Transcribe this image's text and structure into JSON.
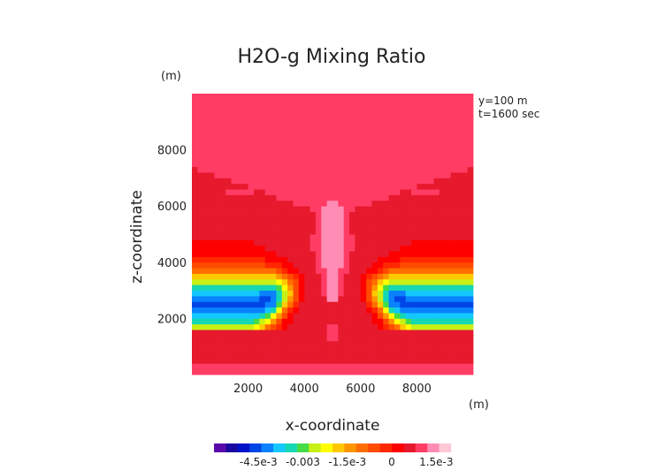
{
  "chart_data": {
    "type": "heatmap",
    "title": "H2O-g Mixing Ratio",
    "xlabel": "x-coordinate",
    "ylabel": "z-coordinate",
    "x_unit": "(m)",
    "z_unit": "(m)",
    "annotations": [
      "y=100 m",
      "t=1600 sec"
    ],
    "xlim": [
      0,
      10000
    ],
    "ylim": [
      0,
      10000
    ],
    "x_ticks": [
      2000,
      4000,
      6000,
      8000
    ],
    "z_ticks": [
      2000,
      4000,
      6000,
      8000
    ],
    "x_tick_labels": [
      "2000",
      "4000",
      "6000",
      "8000"
    ],
    "z_tick_labels": [
      "2000",
      "4000",
      "6000",
      "8000"
    ],
    "colorbar": {
      "range": [
        -0.006,
        0.002
      ],
      "tick_labels": [
        "-4.5e-3",
        "-0.003",
        "-1.5e-3",
        "0",
        "1.5e-3"
      ],
      "tick_values": [
        -0.0045,
        -0.003,
        -0.0015,
        0,
        0.0015
      ]
    },
    "field_features": [
      {
        "feature": "background mixing ratio",
        "value": 0.0005
      },
      {
        "feature": "upper region",
        "z_min": 6500,
        "value": 0.0008
      },
      {
        "feature": "central plume core",
        "x": 5000,
        "z_range": [
          3000,
          6300
        ],
        "value": 0.0015
      },
      {
        "feature": "side minimum bands",
        "z": 2500,
        "value": -0.0045
      }
    ]
  },
  "colors": {
    "palette": [
      "#5a0aa8",
      "#1b0aa0",
      "#0014c8",
      "#0046e6",
      "#0a82ff",
      "#14c8ff",
      "#14d7b4",
      "#46dc46",
      "#c8f014",
      "#ffff00",
      "#ffc800",
      "#ff9600",
      "#ff6e00",
      "#ff4b00",
      "#ff2800",
      "#ff0000",
      "#e6192d",
      "#ff3c64",
      "#ff8cb4",
      "#ffc8d7"
    ]
  }
}
